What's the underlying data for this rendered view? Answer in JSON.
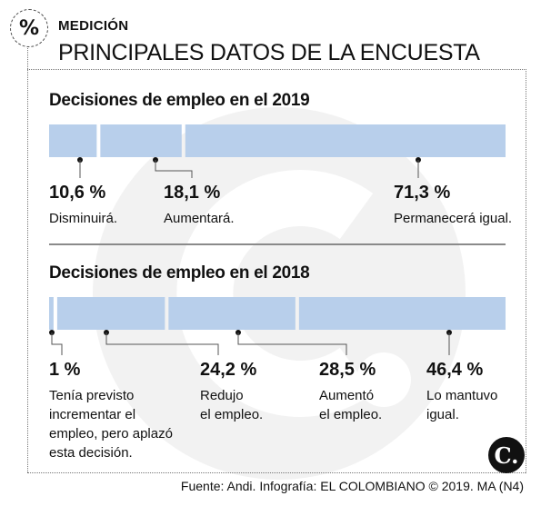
{
  "header": {
    "icon": "%",
    "kicker": "MEDICIÓN",
    "headline": "PRINCIPALES DATOS DE LA ENCUESTA"
  },
  "colors": {
    "bar": "#b8cfeb",
    "text": "#111111",
    "watermark": "#f1f1f1"
  },
  "chart_data": [
    {
      "type": "bar",
      "orientation": "horizontal-stacked",
      "title": "Decisiones de empleo en el 2019",
      "categories": [
        "Disminuirá.",
        "Aumentará.",
        "Permanecerá igual."
      ],
      "values": [
        10.6,
        18.1,
        71.3
      ],
      "value_labels": [
        "10,6 %",
        "18,1 %",
        "71,3 %"
      ],
      "category_labels": [
        "Disminuirá.",
        "Aumentará.",
        "Permanecerá igual."
      ]
    },
    {
      "type": "bar",
      "orientation": "horizontal-stacked",
      "title": "Decisiones de empleo en el 2018",
      "categories": [
        "Tenía previsto incrementar el empleo, pero aplazó esta decisión.",
        "Redujo el empleo.",
        "Aumentó el empleo.",
        "Lo mantuvo igual."
      ],
      "values": [
        1,
        24.2,
        28.5,
        46.4
      ],
      "value_labels": [
        "1 %",
        "24,2 %",
        "28,5 %",
        "46,4 %"
      ],
      "category_labels": [
        [
          "Tenía previsto",
          "incrementar el",
          "empleo, pero aplazó",
          "esta decisión."
        ],
        [
          "Redujo",
          "el empleo."
        ],
        [
          "Aumentó",
          "el empleo."
        ],
        [
          "Lo mantuvo",
          "igual."
        ]
      ]
    }
  ],
  "footer": {
    "source": "Fuente: Andi. Infografía: EL COLOMBIANO © 2019. MA (N4)",
    "logo": "C."
  }
}
